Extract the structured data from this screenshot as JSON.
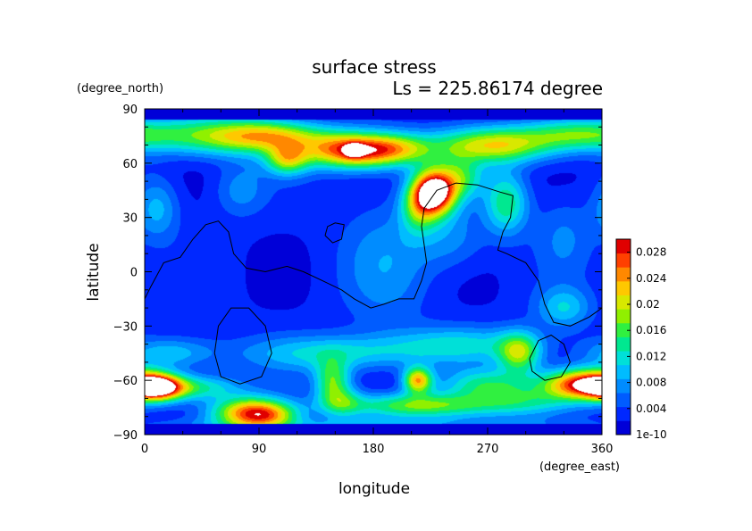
{
  "chart_data": {
    "type": "heatmap",
    "title": "surface stress",
    "subtitle": "Ls = 225.86174 degree",
    "xlabel": "longitude",
    "ylabel": "latitude",
    "xunit": "(degree_east)",
    "yunit": "(degree_north)",
    "xlim": [
      0,
      360
    ],
    "ylim": [
      -90,
      90
    ],
    "xticks": [
      "0",
      "90",
      "180",
      "270",
      "360"
    ],
    "yticks": [
      "90",
      "60",
      "30",
      "0",
      "−30",
      "−60",
      "−90"
    ],
    "colorbar": {
      "min": 0,
      "max": 0.03,
      "tick_values": [
        1e-10,
        0.004,
        0.008,
        0.012,
        0.016,
        0.02,
        0.024,
        0.028
      ],
      "tick_labels": [
        "1e-10",
        "0.004",
        "0.008",
        "0.012",
        "0.016",
        "0.02",
        "0.024",
        "0.028"
      ],
      "colors": [
        "#0000d8",
        "#0028ff",
        "#005cff",
        "#008cff",
        "#00bcff",
        "#00e0d8",
        "#00e890",
        "#30f040",
        "#90f000",
        "#d8e800",
        "#ffc800",
        "#ff8800",
        "#ff4000",
        "#e00000"
      ]
    },
    "background_value": 0.0025,
    "features": [
      {
        "lon": 55,
        "lat": 75,
        "sx": 40,
        "sy": 8,
        "amp": 0.013
      },
      {
        "lon": 100,
        "lat": 75,
        "sx": 30,
        "sy": 6,
        "amp": 0.013
      },
      {
        "lon": 112,
        "lat": 62,
        "sx": 12,
        "sy": 6,
        "amp": 0.014
      },
      {
        "lon": 165,
        "lat": 67,
        "sx": 28,
        "sy": 7,
        "amp": 0.026
      },
      {
        "lon": 165,
        "lat": 67,
        "sx": 5,
        "sy": 2.5,
        "amp": 0.012
      },
      {
        "lon": 200,
        "lat": 68,
        "sx": 20,
        "sy": 6,
        "amp": 0.009
      },
      {
        "lon": 275,
        "lat": 70,
        "sx": 35,
        "sy": 7,
        "amp": 0.018
      },
      {
        "lon": 340,
        "lat": 76,
        "sx": 30,
        "sy": 6,
        "amp": 0.011
      },
      {
        "lon": 228,
        "lat": 44,
        "sx": 12,
        "sy": 9,
        "amp": 0.032
      },
      {
        "lon": 215,
        "lat": 35,
        "sx": 10,
        "sy": 10,
        "amp": 0.01
      },
      {
        "lon": 250,
        "lat": 52,
        "sx": 12,
        "sy": 8,
        "amp": 0.01
      },
      {
        "lon": 285,
        "lat": 38,
        "sx": 12,
        "sy": 12,
        "amp": 0.012
      },
      {
        "lon": 10,
        "lat": 35,
        "sx": 12,
        "sy": 12,
        "amp": 0.007
      },
      {
        "lon": 75,
        "lat": 45,
        "sx": 14,
        "sy": 10,
        "amp": 0.005
      },
      {
        "lon": 190,
        "lat": 5,
        "sx": 25,
        "sy": 25,
        "amp": 0.005
      },
      {
        "lon": 240,
        "lat": 18,
        "sx": 20,
        "sy": 12,
        "amp": 0.005
      },
      {
        "lon": 330,
        "lat": 20,
        "sx": 15,
        "sy": 15,
        "amp": 0.004
      },
      {
        "lon": 20,
        "lat": -45,
        "sx": 25,
        "sy": 6,
        "amp": 0.008
      },
      {
        "lon": 150,
        "lat": -45,
        "sx": 50,
        "sy": 7,
        "amp": 0.009
      },
      {
        "lon": 250,
        "lat": -40,
        "sx": 40,
        "sy": 7,
        "amp": 0.008
      },
      {
        "lon": 295,
        "lat": -45,
        "sx": 12,
        "sy": 8,
        "amp": 0.015
      },
      {
        "lon": 330,
        "lat": -20,
        "sx": 15,
        "sy": 8,
        "amp": 0.008
      },
      {
        "lon": 10,
        "lat": -64,
        "sx": 14,
        "sy": 5,
        "amp": 0.024
      },
      {
        "lon": 40,
        "lat": -64,
        "sx": 25,
        "sy": 5,
        "amp": 0.011
      },
      {
        "lon": 85,
        "lat": -78,
        "sx": 22,
        "sy": 6,
        "amp": 0.024
      },
      {
        "lon": 100,
        "lat": -80,
        "sx": 15,
        "sy": 4,
        "amp": 0.005
      },
      {
        "lon": 148,
        "lat": -60,
        "sx": 10,
        "sy": 8,
        "amp": 0.013
      },
      {
        "lon": 155,
        "lat": -72,
        "sx": 12,
        "sy": 6,
        "amp": 0.009
      },
      {
        "lon": 215,
        "lat": -60,
        "sx": 8,
        "sy": 5,
        "amp": 0.02
      },
      {
        "lon": 215,
        "lat": -74,
        "sx": 40,
        "sy": 5,
        "amp": 0.015
      },
      {
        "lon": 270,
        "lat": -62,
        "sx": 25,
        "sy": 6,
        "amp": 0.01
      },
      {
        "lon": 345,
        "lat": -62,
        "sx": 22,
        "sy": 6,
        "amp": 0.027
      },
      {
        "lon": 300,
        "lat": -72,
        "sx": 30,
        "sy": 6,
        "amp": 0.009
      },
      {
        "lon": 180,
        "lat": -85,
        "sx": 120,
        "sy": 3,
        "amp": 0.005
      }
    ],
    "coastlines": [
      [
        [
          0,
          -15
        ],
        [
          5,
          -8
        ],
        [
          15,
          5
        ],
        [
          28,
          8
        ],
        [
          38,
          18
        ],
        [
          48,
          26
        ],
        [
          58,
          28
        ],
        [
          66,
          22
        ],
        [
          70,
          10
        ],
        [
          80,
          2
        ],
        [
          95,
          0
        ],
        [
          112,
          3
        ],
        [
          125,
          0
        ],
        [
          140,
          -5
        ],
        [
          155,
          -10
        ],
        [
          165,
          -15
        ],
        [
          178,
          -20
        ],
        [
          188,
          -18
        ],
        [
          200,
          -15
        ],
        [
          212,
          -15
        ],
        [
          218,
          -5
        ],
        [
          222,
          5
        ],
        [
          220,
          15
        ],
        [
          218,
          25
        ],
        [
          220,
          35
        ],
        [
          230,
          45
        ],
        [
          245,
          49
        ],
        [
          262,
          48
        ],
        [
          280,
          44
        ],
        [
          290,
          42
        ],
        [
          288,
          30
        ],
        [
          282,
          22
        ],
        [
          278,
          12
        ],
        [
          285,
          10
        ],
        [
          300,
          5
        ],
        [
          310,
          -5
        ],
        [
          315,
          -18
        ],
        [
          322,
          -28
        ],
        [
          335,
          -30
        ],
        [
          350,
          -25
        ],
        [
          360,
          -20
        ]
      ],
      [
        [
          142,
          20
        ],
        [
          148,
          16
        ],
        [
          155,
          18
        ],
        [
          157,
          26
        ],
        [
          150,
          27
        ],
        [
          144,
          25
        ],
        [
          142,
          20
        ]
      ],
      [
        [
          55,
          -45
        ],
        [
          58,
          -30
        ],
        [
          68,
          -20
        ],
        [
          82,
          -20
        ],
        [
          95,
          -30
        ],
        [
          100,
          -45
        ],
        [
          92,
          -58
        ],
        [
          75,
          -62
        ],
        [
          60,
          -58
        ],
        [
          55,
          -45
        ]
      ],
      [
        [
          303,
          -48
        ],
        [
          310,
          -38
        ],
        [
          320,
          -35
        ],
        [
          330,
          -40
        ],
        [
          335,
          -50
        ],
        [
          328,
          -58
        ],
        [
          315,
          -60
        ],
        [
          305,
          -55
        ],
        [
          303,
          -48
        ]
      ]
    ]
  }
}
